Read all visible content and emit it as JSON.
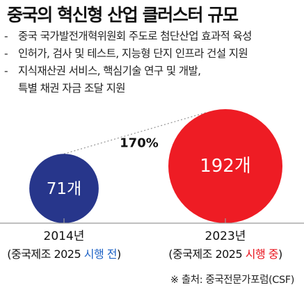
{
  "title": "중국의 혁신형 산업 클러스터 규모",
  "bullets": [
    {
      "dash": "-",
      "lines": [
        "중국 국가발전개혁위원회 주도로 첨단산업 효과적 육성"
      ]
    },
    {
      "dash": "-",
      "lines": [
        "인허가, 검사 및 테스트, 지능형 단지 인프라 건설 지원"
      ]
    },
    {
      "dash": "-",
      "lines": [
        "지식재산권 서비스, 핵심기술 연구 및 개발,",
        "특별 채권 자금 조달 지원"
      ]
    }
  ],
  "chart_data": {
    "type": "bubble",
    "growth_label": "170%",
    "colors": {
      "before": "#27368b",
      "after": "#ee1c24",
      "highlight": "#1e63c6",
      "highlight_after": "#e8101a"
    },
    "points": [
      {
        "year": "2014년",
        "value": 71,
        "value_label": "71개",
        "note_prefix": "(중국제조 2025 ",
        "note_highlight": "시행 전",
        "note_suffix": ")"
      },
      {
        "year": "2023년",
        "value": 192,
        "value_label": "192개",
        "note_prefix": "(중국제조 2025 ",
        "note_highlight": "시행 중",
        "note_suffix": ")"
      }
    ]
  },
  "source": "※ 출처: 중국전문가포럼(CSF)"
}
